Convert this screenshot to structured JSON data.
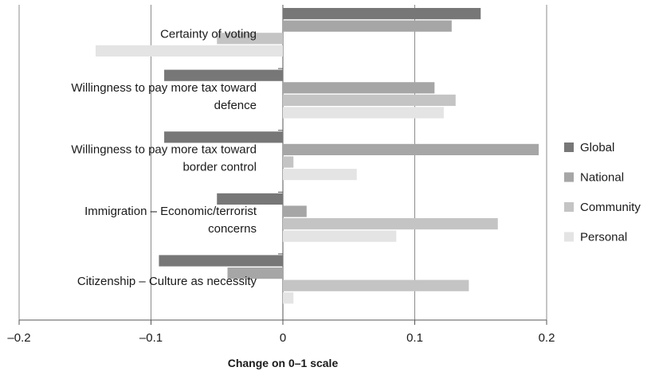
{
  "chart_data": {
    "type": "bar",
    "orientation": "horizontal",
    "title": "",
    "xlabel": "Change on 0–1 scale",
    "ylabel": "",
    "xlim": [
      -0.2,
      0.2
    ],
    "xticks": [
      -0.2,
      -0.1,
      0,
      0.1,
      0.2
    ],
    "xtick_labels": [
      "–0.2",
      "–0.1",
      "0",
      "0.1",
      "0.2"
    ],
    "grid": "vertical",
    "legend_position": "right",
    "categories": [
      {
        "label_lines": [
          "Certainty of voting"
        ]
      },
      {
        "label_lines": [
          "Willingness to pay more tax toward",
          "defence"
        ]
      },
      {
        "label_lines": [
          "Willingness to pay more tax toward",
          "border control"
        ]
      },
      {
        "label_lines": [
          "Immigration – Economic/terrorist",
          "concerns"
        ]
      },
      {
        "label_lines": [
          "Citizenship – Culture as necessity"
        ]
      }
    ],
    "series": [
      {
        "name": "Global",
        "color": "#777777",
        "values": [
          0.15,
          -0.09,
          -0.09,
          -0.05,
          -0.094
        ]
      },
      {
        "name": "National",
        "color": "#a6a6a6",
        "values": [
          0.128,
          0.115,
          0.194,
          0.018,
          -0.042
        ]
      },
      {
        "name": "Community",
        "color": "#c4c4c4",
        "values": [
          -0.05,
          0.131,
          0.008,
          0.163,
          0.141
        ]
      },
      {
        "name": "Personal",
        "color": "#e4e4e4",
        "values": [
          -0.142,
          0.122,
          0.056,
          0.086,
          0.008
        ]
      }
    ]
  }
}
